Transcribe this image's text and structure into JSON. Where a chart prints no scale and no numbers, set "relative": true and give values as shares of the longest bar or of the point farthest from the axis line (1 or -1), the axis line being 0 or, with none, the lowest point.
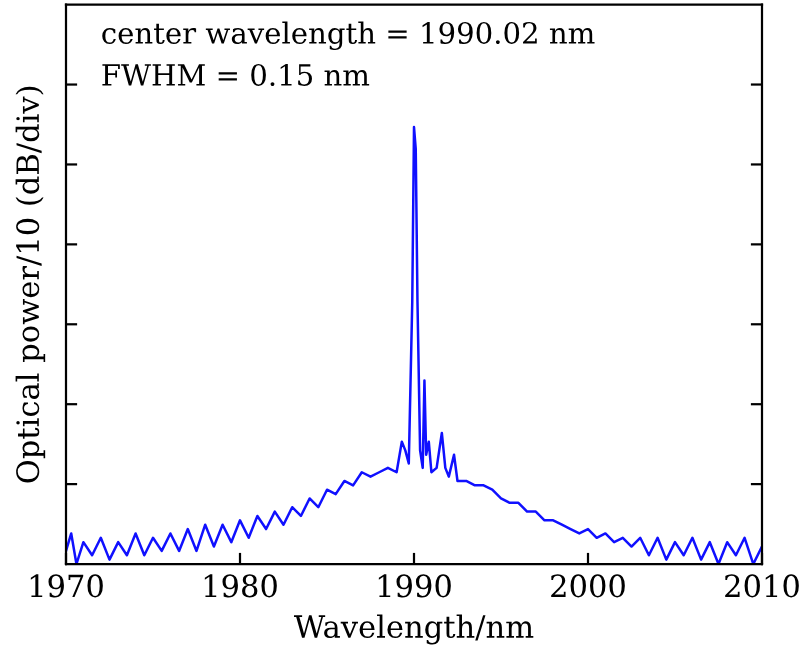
{
  "chart_data": {
    "type": "line",
    "relative": true,
    "xlabel": "Wavelength/nm",
    "ylabel": "Optical power/10 (dB/div)",
    "annotations": [
      "center wavelength = 1990.02 nm",
      "FWHM = 0.15 nm"
    ],
    "xlim": [
      1970,
      2010
    ],
    "xticks": [
      1970,
      1980,
      1990,
      2000,
      2010
    ],
    "grid": false,
    "legend": false,
    "marker": "none",
    "line_style": "solid",
    "x": [
      1970,
      1970.3,
      1970.6,
      1971,
      1971.5,
      1972,
      1972.5,
      1973,
      1973.5,
      1974,
      1974.5,
      1975,
      1975.5,
      1976,
      1976.5,
      1977,
      1977.5,
      1978,
      1978.5,
      1979,
      1979.5,
      1980,
      1980.5,
      1981,
      1981.5,
      1982,
      1982.5,
      1983,
      1983.5,
      1984,
      1984.5,
      1985,
      1985.5,
      1986,
      1986.5,
      1987,
      1987.5,
      1988,
      1988.5,
      1989,
      1989.3,
      1989.5,
      1989.7,
      1989.9,
      1990.0,
      1990.1,
      1990.2,
      1990.35,
      1990.5,
      1990.6,
      1990.7,
      1990.85,
      1991,
      1991.3,
      1991.6,
      1991.8,
      1992,
      1992.3,
      1992.5,
      1993,
      1993.5,
      1994,
      1994.5,
      1995,
      1995.5,
      1996,
      1996.5,
      1997,
      1997.5,
      1998,
      1998.5,
      1999,
      1999.5,
      2000,
      2000.5,
      2001,
      2001.5,
      2002,
      2002.5,
      2003,
      2003.5,
      2004,
      2004.5,
      2005,
      2005.5,
      2006,
      2006.5,
      2007,
      2007.5,
      2008,
      2008.5,
      2009,
      2009.5,
      2010
    ],
    "series": [
      {
        "color": "#1010ff",
        "values": [
          0.03,
          0.07,
          0.0,
          0.05,
          0.02,
          0.06,
          0.01,
          0.05,
          0.02,
          0.07,
          0.02,
          0.06,
          0.03,
          0.07,
          0.03,
          0.08,
          0.03,
          0.09,
          0.04,
          0.09,
          0.05,
          0.1,
          0.06,
          0.11,
          0.08,
          0.12,
          0.09,
          0.13,
          0.11,
          0.15,
          0.13,
          0.17,
          0.16,
          0.19,
          0.18,
          0.21,
          0.2,
          0.21,
          0.22,
          0.21,
          0.28,
          0.26,
          0.23,
          0.6,
          1.0,
          0.95,
          0.6,
          0.26,
          0.22,
          0.42,
          0.25,
          0.28,
          0.21,
          0.22,
          0.3,
          0.22,
          0.2,
          0.25,
          0.19,
          0.19,
          0.18,
          0.18,
          0.17,
          0.15,
          0.14,
          0.14,
          0.12,
          0.12,
          0.1,
          0.1,
          0.09,
          0.08,
          0.07,
          0.08,
          0.06,
          0.07,
          0.05,
          0.06,
          0.04,
          0.06,
          0.02,
          0.06,
          0.01,
          0.05,
          0.02,
          0.06,
          0.01,
          0.05,
          0.0,
          0.05,
          0.02,
          0.06,
          0.0,
          0.04
        ]
      }
    ]
  }
}
